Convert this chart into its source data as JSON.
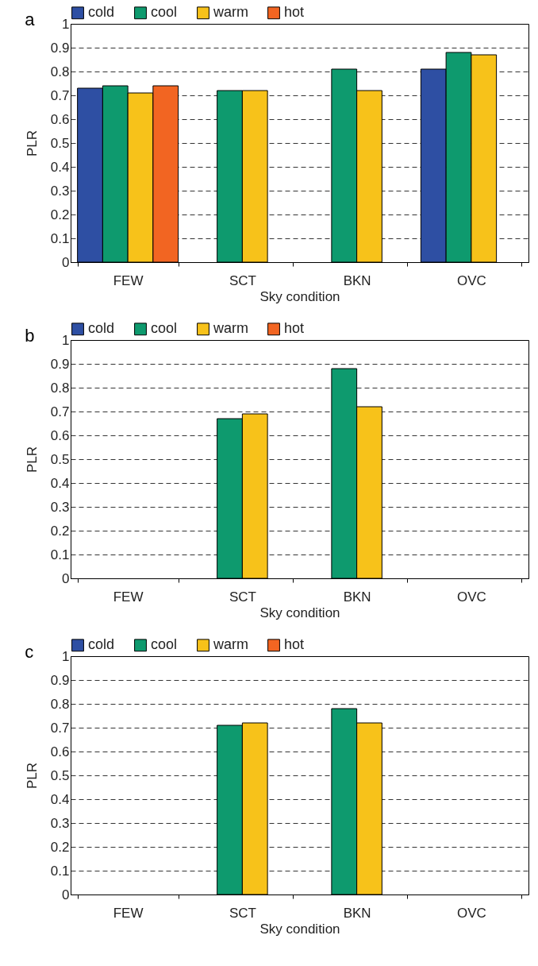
{
  "chart_data": [
    {
      "type": "bar",
      "title": "a",
      "xlabel": "Sky condition",
      "ylabel": "PLR",
      "categories": [
        "FEW",
        "SCT",
        "BKN",
        "OVC"
      ],
      "series": [
        {
          "name": "cold",
          "color": "#2e4fa3",
          "values": [
            0.73,
            null,
            null,
            0.81
          ]
        },
        {
          "name": "cool",
          "color": "#0e9a6e",
          "values": [
            0.74,
            0.72,
            0.81,
            0.88
          ]
        },
        {
          "name": "warm",
          "color": "#f7c21a",
          "values": [
            0.71,
            0.72,
            0.72,
            0.87
          ]
        },
        {
          "name": "hot",
          "color": "#f26522",
          "values": [
            0.74,
            null,
            null,
            null
          ]
        }
      ],
      "ylim": [
        0,
        1
      ],
      "yticks": [
        0,
        0.1,
        0.2,
        0.3,
        0.4,
        0.5,
        0.6,
        0.7,
        0.8,
        0.9,
        1
      ],
      "grid": "y",
      "legend": "top"
    },
    {
      "type": "bar",
      "title": "b",
      "xlabel": "Sky condition",
      "ylabel": "PLR",
      "categories": [
        "FEW",
        "SCT",
        "BKN",
        "OVC"
      ],
      "series": [
        {
          "name": "cold",
          "color": "#2e4fa3",
          "values": [
            null,
            null,
            null,
            null
          ]
        },
        {
          "name": "cool",
          "color": "#0e9a6e",
          "values": [
            null,
            0.67,
            0.88,
            null
          ]
        },
        {
          "name": "warm",
          "color": "#f7c21a",
          "values": [
            null,
            0.69,
            0.72,
            null
          ]
        },
        {
          "name": "hot",
          "color": "#f26522",
          "values": [
            null,
            null,
            null,
            null
          ]
        }
      ],
      "ylim": [
        0,
        1
      ],
      "yticks": [
        0,
        0.1,
        0.2,
        0.3,
        0.4,
        0.5,
        0.6,
        0.7,
        0.8,
        0.9,
        1
      ],
      "grid": "y",
      "legend": "top"
    },
    {
      "type": "bar",
      "title": "c",
      "xlabel": "Sky condition",
      "ylabel": "PLR",
      "categories": [
        "FEW",
        "SCT",
        "BKN",
        "OVC"
      ],
      "series": [
        {
          "name": "cold",
          "color": "#2e4fa3",
          "values": [
            null,
            null,
            null,
            null
          ]
        },
        {
          "name": "cool",
          "color": "#0e9a6e",
          "values": [
            null,
            0.71,
            0.78,
            null
          ]
        },
        {
          "name": "warm",
          "color": "#f7c21a",
          "values": [
            null,
            0.72,
            0.72,
            null
          ]
        },
        {
          "name": "hot",
          "color": "#f26522",
          "values": [
            null,
            null,
            null,
            null
          ]
        }
      ],
      "ylim": [
        0,
        1
      ],
      "yticks": [
        0,
        0.1,
        0.2,
        0.3,
        0.4,
        0.5,
        0.6,
        0.7,
        0.8,
        0.9,
        1
      ],
      "grid": "y",
      "legend": "top"
    }
  ]
}
